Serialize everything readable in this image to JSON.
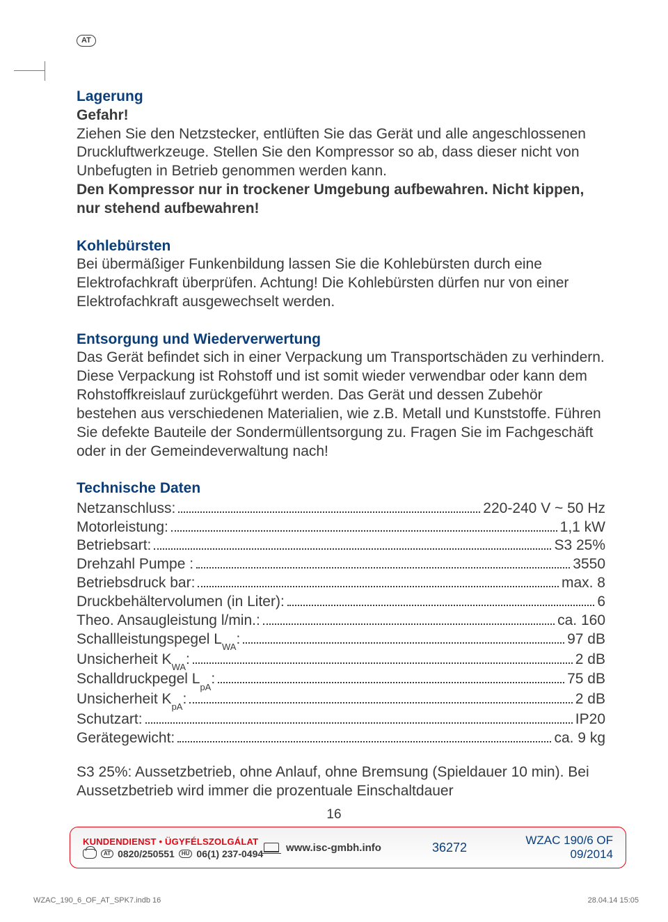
{
  "country_badge": "AT",
  "sections": {
    "lagerung": {
      "title": "Lagerung",
      "danger": "Gefahr!",
      "p1": "Ziehen Sie den Netzstecker, entlüften Sie das Gerät und alle angeschlossenen Druckluftwerkzeuge. Stellen Sie den Kompressor so ab, dass dieser nicht von Unbefugten in Betrieb genommen werden kann.",
      "bold": "Den Kompressor nur in trockener Umgebung aufbewahren. Nicht kippen, nur stehend aufbewahren!"
    },
    "kohle": {
      "title": "Kohlebürsten",
      "p": "Bei übermäßiger Funkenbildung lassen Sie die Kohlebürsten durch eine Elektrofachkraft überprüfen. Achtung! Die Kohlebürsten dürfen nur von einer Elektrofachkraft ausgewechselt werden."
    },
    "entsorgung": {
      "title": "Entsorgung und Wiederverwertung",
      "p": "Das Gerät befindet sich in einer Verpackung um Transportschäden zu verhindern. Diese Verpackung ist Rohstoff und ist somit wieder verwendbar oder kann dem Rohstoffkreislauf zurückgeführt werden. Das Gerät und dessen Zubehör bestehen aus verschiedenen Materialien, wie z.B. Metall und Kunststoffe. Führen Sie defekte Bauteile der Sondermüllentsorgung zu. Fragen Sie im Fachgeschäft oder in der Gemeindeverwaltung nach!"
    },
    "technische": {
      "title": "Technische Daten",
      "rows": [
        {
          "label": "Netzanschluss:",
          "sub": "",
          "value": "220-240 V ~ 50 Hz"
        },
        {
          "label": "Motorleistung:",
          "sub": "",
          "value": "1,1 kW"
        },
        {
          "label": "Betriebsart:",
          "sub": "",
          "value": "S3 25%"
        },
        {
          "label": "Drehzahl Pumpe :",
          "sub": "",
          "value": "3550"
        },
        {
          "label": "Betriebsdruck bar:",
          "sub": "",
          "value": "max. 8"
        },
        {
          "label": "Druckbehältervolumen (in Liter):",
          "sub": "",
          "value": "6"
        },
        {
          "label": "Theo. Ansaugleistung l/min.:",
          "sub": "",
          "value": "ca. 160"
        },
        {
          "label": "Schallleistungspegel L",
          "sub": "WA",
          "suffix": ":",
          "value": "97 dB"
        },
        {
          "label": "Unsicherheit K",
          "sub": "WA",
          "suffix": ":",
          "value": "2 dB"
        },
        {
          "label": "Schalldruckpegel L",
          "sub": "pA",
          "suffix": ":",
          "value": "75 dB"
        },
        {
          "label": "Unsicherheit K",
          "sub": "pA",
          "suffix": ":",
          "value": "2 dB"
        },
        {
          "label": "Schutzart:",
          "sub": "",
          "value": "IP20"
        },
        {
          "label": "Gerätegewicht:",
          "sub": "",
          "value": "ca. 9 kg"
        }
      ],
      "footnote": "S3 25%: Aussetzbetrieb, ohne Anlauf, ohne Bremsung (Spieldauer 10 min). Bei Aussetzbetrieb wird immer die prozentuale Einschaltdauer"
    }
  },
  "page_number": "16",
  "footer": {
    "service_label": "KUNDENDIENST • ÜGYFÉLSZOLGÁLAT",
    "badge1": "AT",
    "phone1": "0820/250551",
    "badge2": "HU",
    "phone2": "06(1) 237-0494",
    "website": "www.isc-gmbh.info",
    "code": "36272",
    "model": "WZAC 190/6 OF",
    "date": "09/2014"
  },
  "indb": {
    "file": "WZAC_190_6_OF_AT_SPK7.indb   16",
    "ts": "28.04.14   15:05"
  },
  "colors": {
    "blue": "#0a3e7a",
    "red": "#e30613",
    "text": "#3a3a3a",
    "bg": "#ffffff"
  }
}
